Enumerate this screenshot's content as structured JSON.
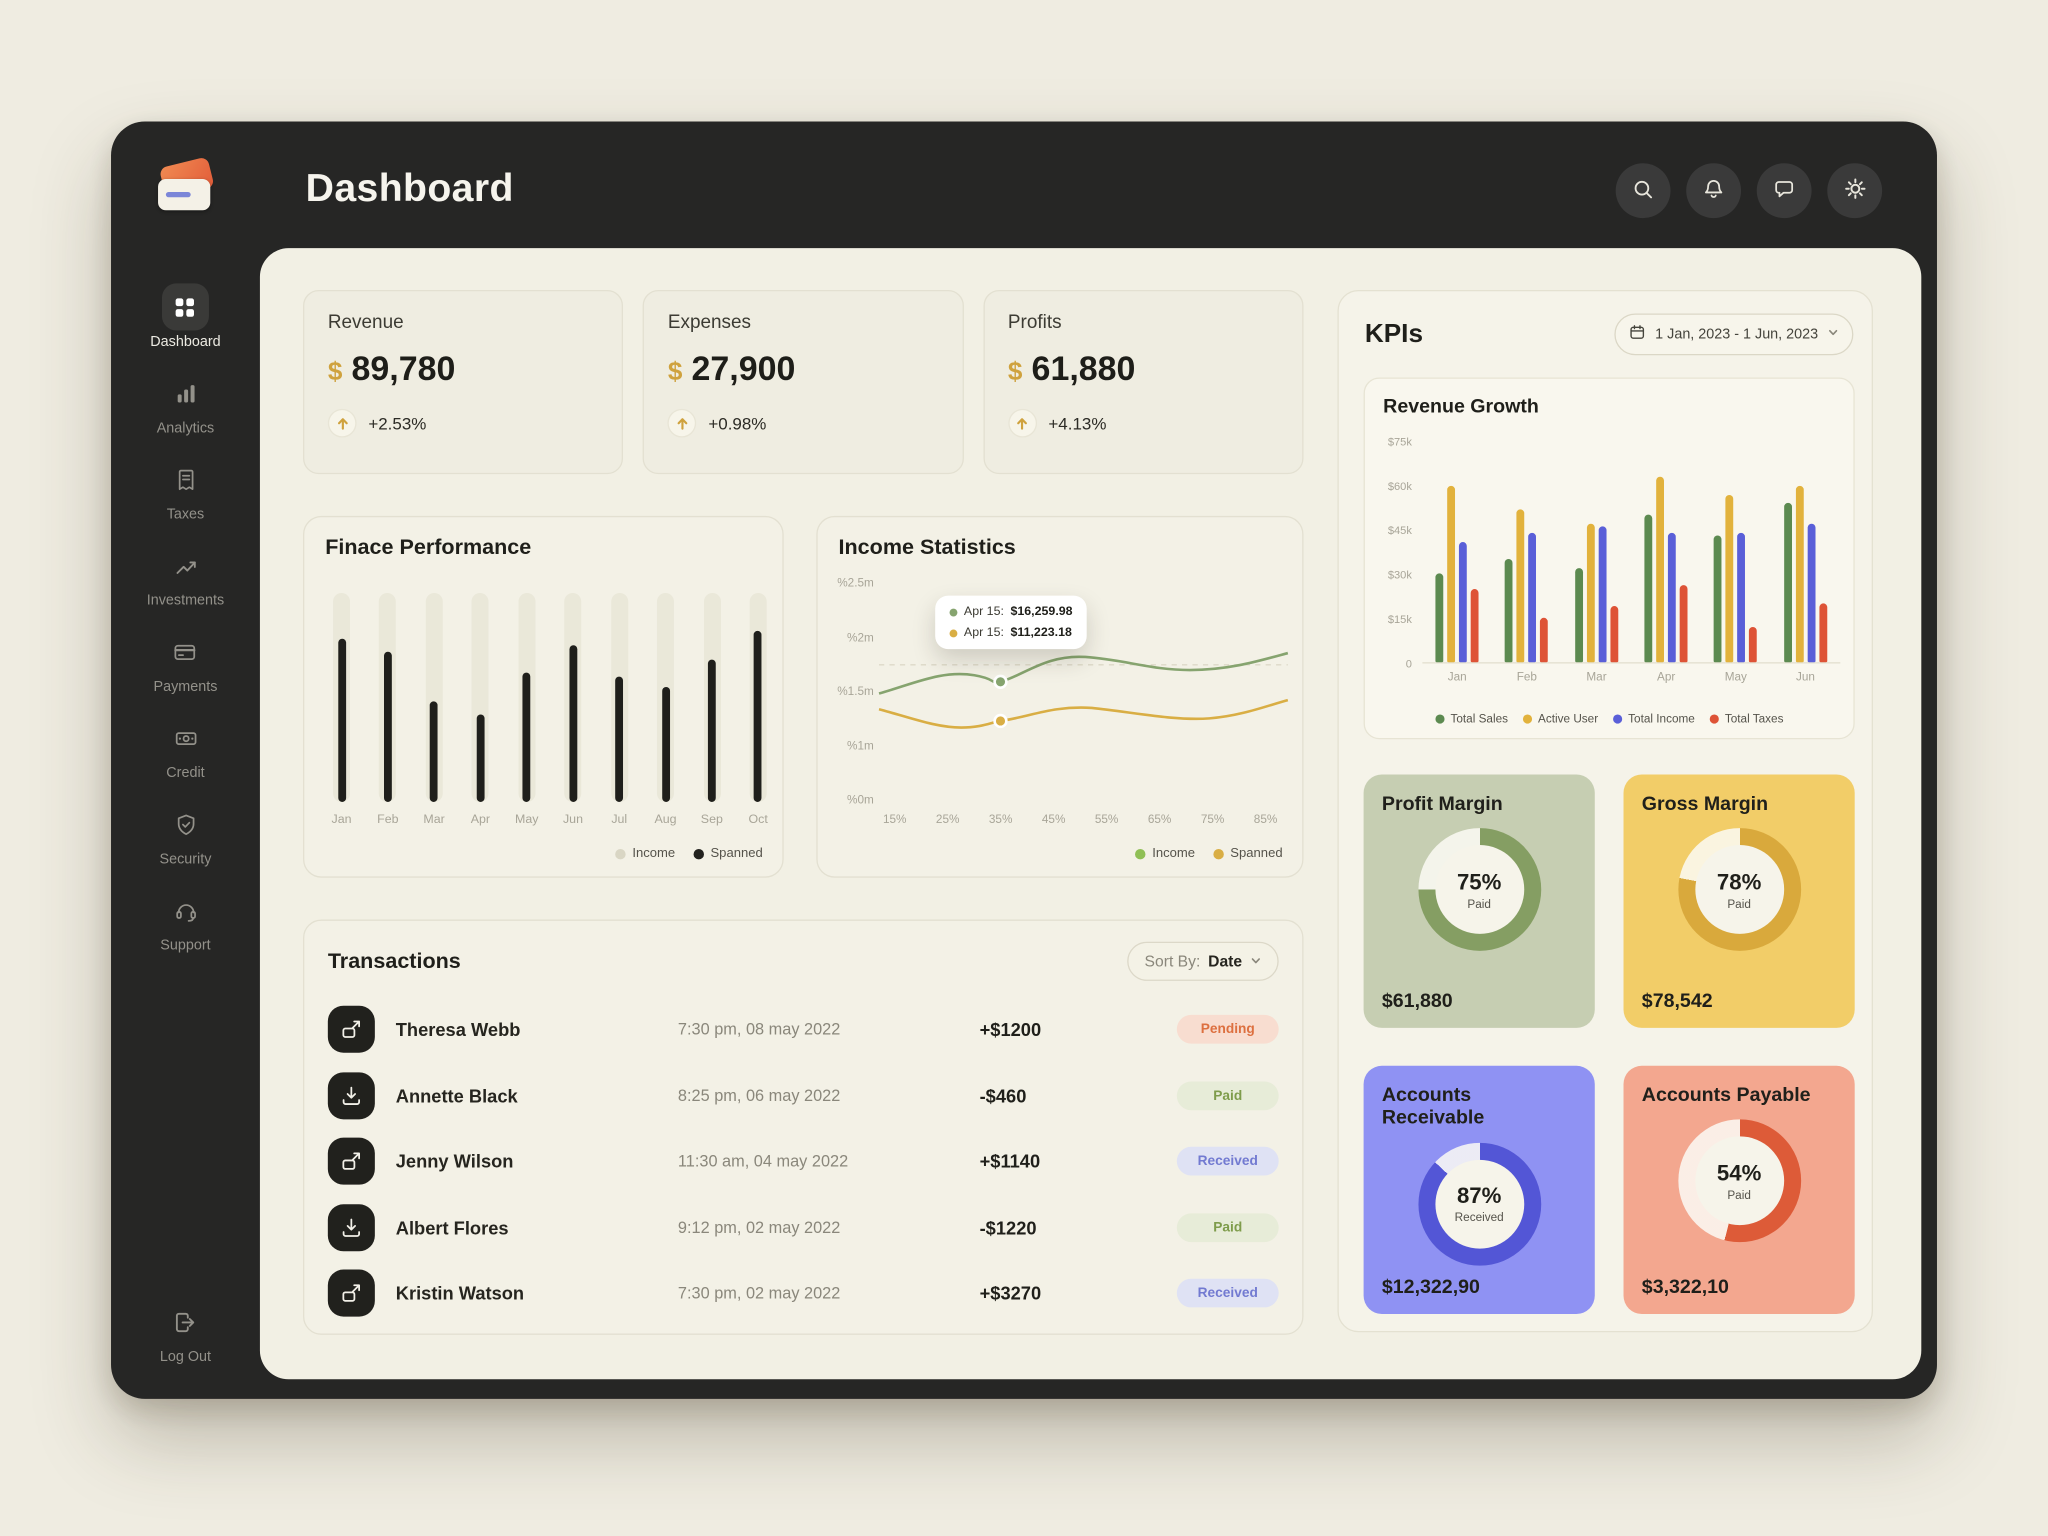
{
  "theme": {
    "background": "#efece1",
    "window": "#262625",
    "accent_gold": "#cfa23e"
  },
  "header": {
    "title": "Dashboard"
  },
  "header_actions": [
    "search-icon",
    "bell-icon",
    "chat-icon",
    "settings-icon"
  ],
  "sidebar": {
    "items": [
      {
        "label": "Dashboard",
        "icon": "dashboard-icon",
        "active": true
      },
      {
        "label": "Analytics",
        "icon": "analytics-icon",
        "active": false
      },
      {
        "label": "Taxes",
        "icon": "taxes-icon",
        "active": false
      },
      {
        "label": "Investments",
        "icon": "investments-icon",
        "active": false
      },
      {
        "label": "Payments",
        "icon": "payments-icon",
        "active": false
      },
      {
        "label": "Credit",
        "icon": "credit-icon",
        "active": false
      },
      {
        "label": "Security",
        "icon": "security-icon",
        "active": false
      },
      {
        "label": "Support",
        "icon": "support-icon",
        "active": false
      }
    ],
    "logout": {
      "label": "Log Out",
      "icon": "logout-icon"
    }
  },
  "stats": [
    {
      "label": "Revenue",
      "currency": "$",
      "value": "89,780",
      "change": "+2.53%"
    },
    {
      "label": "Expenses",
      "currency": "$",
      "value": "27,900",
      "change": "+0.98%"
    },
    {
      "label": "Profits",
      "currency": "$",
      "value": "61,880",
      "change": "+4.13%"
    }
  ],
  "finance_performance": {
    "title": "Finace Performance",
    "chart_data": {
      "type": "bar",
      "categories": [
        "Jan",
        "Feb",
        "Mar",
        "Apr",
        "May",
        "Jun",
        "Jul",
        "Aug",
        "Sep",
        "Oct"
      ],
      "values_pct": [
        78,
        72,
        48,
        42,
        62,
        75,
        60,
        55,
        68,
        82
      ]
    },
    "legend": [
      {
        "label": "Income",
        "color": "#d9d6c4"
      },
      {
        "label": "Spanned",
        "color": "#22221e"
      }
    ]
  },
  "income_statistics": {
    "title": "Income Statistics",
    "chart_data": {
      "type": "line",
      "y_tick_labels": [
        "%2.5m",
        "%2m",
        "%1.5m",
        "%1m",
        "%0m"
      ],
      "x_tick_labels": [
        "15%",
        "25%",
        "35%",
        "45%",
        "55%",
        "65%",
        "75%",
        "85%"
      ],
      "tooltip": {
        "rows": [
          {
            "label": "Apr 15:",
            "value": "$16,259.98",
            "color": "#86a46f"
          },
          {
            "label": "Apr 15:",
            "value": "$11,223.18",
            "color": "#d9ae44"
          }
        ]
      },
      "legend": [
        {
          "label": "Income",
          "color": "#8fbf55"
        },
        {
          "label": "Spanned",
          "color": "#d9ae44"
        }
      ]
    }
  },
  "transactions": {
    "title": "Transactions",
    "sort_label": "Sort By:",
    "sort_value": "Date",
    "rows": [
      {
        "name": "Theresa Webb",
        "datetime": "7:30 pm, 08 may 2022",
        "amount": "+$1200",
        "status": "Pending",
        "icon": "card-send-icon"
      },
      {
        "name": "Annette Black",
        "datetime": "8:25 pm, 06 may 2022",
        "amount": "-$460",
        "status": "Paid",
        "icon": "card-receive-icon"
      },
      {
        "name": "Jenny Wilson",
        "datetime": "11:30 am, 04 may 2022",
        "amount": "+$1140",
        "status": "Received",
        "icon": "card-send-icon"
      },
      {
        "name": "Albert Flores",
        "datetime": "9:12 pm, 02 may 2022",
        "amount": "-$1220",
        "status": "Paid",
        "icon": "card-receive-icon"
      },
      {
        "name": "Kristin Watson",
        "datetime": "7:30 pm, 02 may 2022",
        "amount": "+$3270",
        "status": "Received",
        "icon": "card-send-icon"
      }
    ]
  },
  "kpis": {
    "title": "KPIs",
    "date_range": "1 Jan, 2023 - 1 Jun, 2023",
    "revenue_growth": {
      "title": "Revenue Growth",
      "chart_data": {
        "type": "grouped-bar",
        "categories": [
          "Jan",
          "Feb",
          "Mar",
          "Apr",
          "May",
          "Jun"
        ],
        "y_tick_labels": [
          "$75k",
          "$60k",
          "$45k",
          "$30k",
          "$15k",
          "0"
        ],
        "ymax_k": 75,
        "series": [
          {
            "name": "Total Sales",
            "color": "#5c8a50",
            "values_k": [
              30,
              35,
              32,
              50,
              43,
              54
            ]
          },
          {
            "name": "Active User",
            "color": "#e2b23c",
            "values_k": [
              60,
              52,
              47,
              63,
              57,
              60
            ]
          },
          {
            "name": "Total Income",
            "color": "#5a5fd8",
            "values_k": [
              41,
              44,
              46,
              44,
              44,
              47
            ]
          },
          {
            "name": "Total Taxes",
            "color": "#de5336",
            "values_k": [
              25,
              15,
              19,
              26,
              12,
              20
            ]
          }
        ]
      }
    },
    "cards": [
      {
        "title": "Profit Margin",
        "percent": 75,
        "percent_label": "75%",
        "sub": "Paid",
        "amount": "$61,880",
        "bg": "#c6ceb2",
        "ring": "#859e63"
      },
      {
        "title": "Gross Margin",
        "percent": 78,
        "percent_label": "78%",
        "sub": "Paid",
        "amount": "$78,542",
        "bg": "#f2cd68",
        "ring": "#d9a93c"
      },
      {
        "title": "Accounts Receivable",
        "percent": 87,
        "percent_label": "87%",
        "sub": "Received",
        "amount": "$12,322,90",
        "bg": "#8f92f3",
        "ring": "#5356d6"
      },
      {
        "title": "Accounts Payable",
        "percent": 54,
        "percent_label": "54%",
        "sub": "Paid",
        "amount": "$3,322,10",
        "bg": "#f3a78f",
        "ring": "#dd5b38"
      }
    ]
  }
}
